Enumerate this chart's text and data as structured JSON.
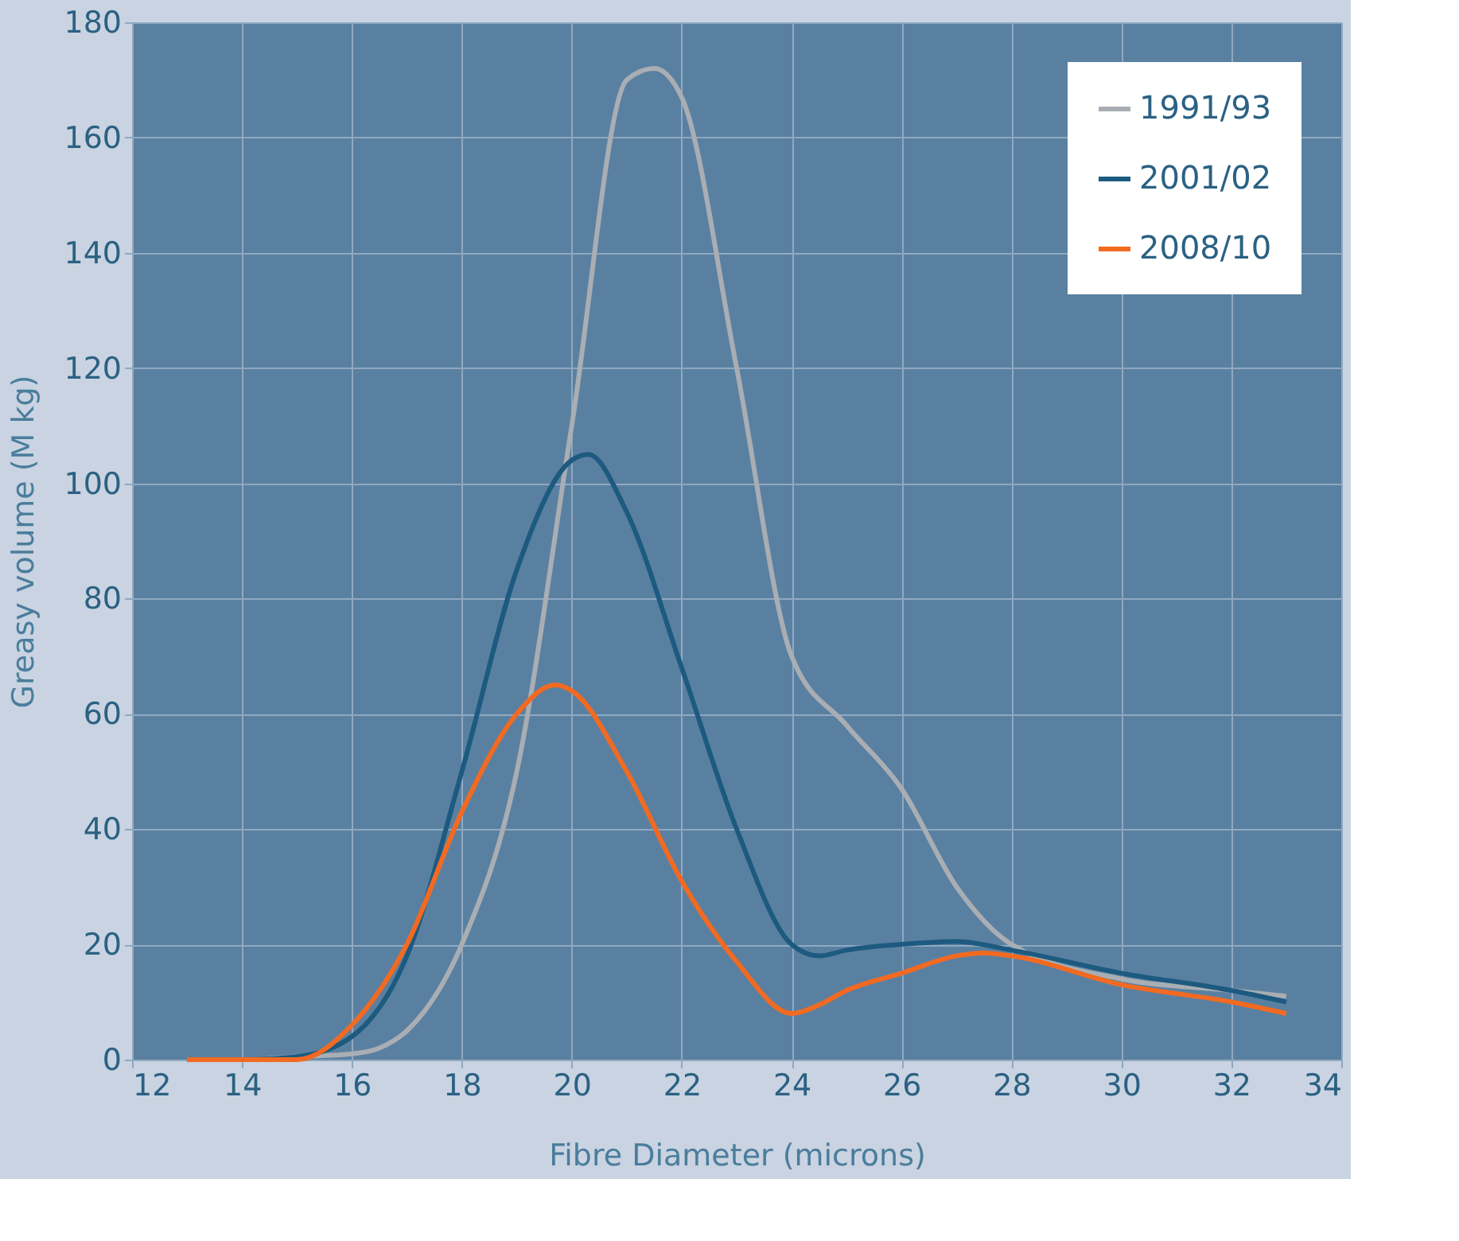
{
  "chart_data": {
    "type": "line",
    "xlabel": "Fibre Diameter (microns)",
    "ylabel": "Greasy volume  (M kg)",
    "xlim": [
      12,
      34
    ],
    "xticks": [
      12,
      14,
      16,
      18,
      20,
      22,
      24,
      26,
      28,
      30,
      32,
      34
    ],
    "ylim": [
      0,
      180
    ],
    "yticks": [
      0,
      20,
      40,
      60,
      80,
      100,
      120,
      140,
      160,
      180
    ],
    "grid": true,
    "legend": "top right",
    "series": [
      {
        "name": "1991/93",
        "color": "#a9aeb4",
        "x": [
          13,
          14,
          15,
          16,
          16.5,
          17,
          18,
          19,
          20,
          21,
          21.5,
          22,
          23,
          24,
          25,
          26,
          27,
          28,
          30,
          32,
          33
        ],
        "values": [
          0,
          0,
          0.5,
          1,
          2,
          5,
          20,
          50,
          110,
          170,
          172,
          167,
          120,
          70,
          58,
          47,
          30,
          20,
          14,
          12,
          11
        ]
      },
      {
        "name": "2001/02",
        "color": "#1d5a80",
        "x": [
          13,
          14,
          15,
          16,
          17,
          18,
          19,
          20,
          20.3,
          21,
          22,
          23,
          24,
          24.5,
          25,
          26,
          27,
          28,
          30,
          32,
          33
        ],
        "values": [
          0,
          0,
          0.5,
          4,
          18,
          50,
          85,
          104,
          105,
          95,
          68,
          40,
          20,
          18,
          19,
          20,
          20.5,
          19,
          15,
          12,
          10
        ]
      },
      {
        "name": "2008/10",
        "color": "#f26a21",
        "x": [
          13,
          14,
          15,
          16,
          17,
          18,
          19,
          19.7,
          20,
          21,
          22,
          23,
          24,
          24.5,
          25,
          26,
          27,
          27.5,
          28,
          30,
          32,
          33
        ],
        "values": [
          0,
          0,
          0,
          6,
          20,
          43,
          60,
          65,
          64,
          50,
          31,
          17,
          8,
          9.5,
          12,
          15,
          18,
          18.5,
          18,
          13,
          10,
          8
        ]
      }
    ]
  }
}
